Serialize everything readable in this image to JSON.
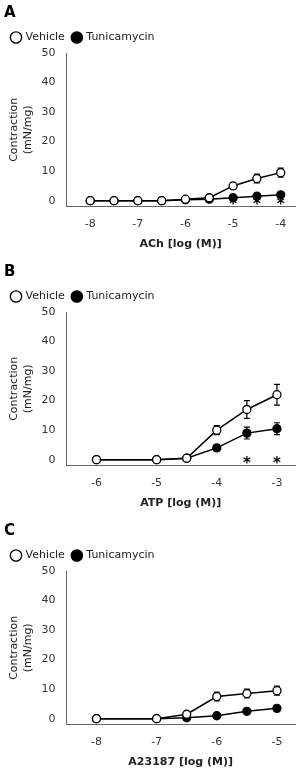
{
  "chart_data": [
    {
      "type": "line",
      "title": "A",
      "x_label": "ACh [log (M)]",
      "y_label": "Contraction\n(mN/mg)",
      "x": [
        -8,
        -7.5,
        -7,
        -6.5,
        -6,
        -5.5,
        -5,
        -4.5,
        -4
      ],
      "series": [
        {
          "name": "Vehicle",
          "color": "#000000",
          "marker": "circle_open",
          "values": [
            0,
            0,
            0,
            0,
            0.5,
            1.0,
            5.0,
            7.5,
            9.5
          ],
          "yerr": [
            0.2,
            0.2,
            0.2,
            0.2,
            0.3,
            0.5,
            1.0,
            1.5,
            1.5
          ]
        },
        {
          "name": "Tunicamycin",
          "color": "#000000",
          "marker": "circle",
          "values": [
            0,
            0,
            0,
            0,
            0.3,
            0.5,
            1.0,
            1.5,
            2.0
          ],
          "yerr": [
            0.2,
            0.2,
            0.2,
            0.2,
            0.2,
            0.3,
            0.4,
            0.5,
            0.5
          ]
        }
      ],
      "xlim": [
        -8.5,
        -3.7
      ],
      "ylim": [
        -2,
        50
      ],
      "xticks": [
        -8,
        -7,
        -6,
        -5,
        -4
      ],
      "yticks": [
        0,
        10,
        20,
        30,
        40,
        50
      ],
      "grid": false,
      "legend": "upper left",
      "annotations": [
        {
          "text": "*",
          "x": -5,
          "y": -1.5
        },
        {
          "text": "*",
          "x": -4.5,
          "y": -1.5
        },
        {
          "text": "*",
          "x": -4,
          "y": -1.5
        }
      ]
    },
    {
      "type": "line",
      "title": "B",
      "x_label": "ATP [log (M)]",
      "y_label": "Contraction\n(mN/mg)",
      "x": [
        -6,
        -5,
        -4.5,
        -4,
        -3.5,
        -3
      ],
      "series": [
        {
          "name": "Vehicle",
          "color": "#000000",
          "marker": "circle_open",
          "values": [
            0,
            0,
            0.5,
            10.0,
            17.0,
            22.0
          ],
          "yerr": [
            0.2,
            0.2,
            0.5,
            1.5,
            3.0,
            3.5
          ]
        },
        {
          "name": "Tunicamycin",
          "color": "#000000",
          "marker": "circle",
          "values": [
            0,
            0,
            0.5,
            4.0,
            9.0,
            10.5
          ],
          "yerr": [
            0.2,
            0.2,
            0.5,
            1.0,
            2.0,
            2.0
          ]
        }
      ],
      "xlim": [
        -6.5,
        -2.7
      ],
      "ylim": [
        -2,
        50
      ],
      "xticks": [
        -6,
        -5,
        -4,
        -3
      ],
      "yticks": [
        0,
        10,
        20,
        30,
        40,
        50
      ],
      "grid": false,
      "legend": "upper left",
      "annotations": [
        {
          "text": "*",
          "x": -3.5,
          "y": -1.5
        },
        {
          "text": "*",
          "x": -3,
          "y": -1.5
        }
      ]
    },
    {
      "type": "line",
      "title": "C",
      "x_label": "A23187 [log (M)]",
      "y_label": "Contraction\n(mN/mg)",
      "x": [
        -8,
        -7,
        -6.5,
        -6,
        -5.5,
        -5
      ],
      "series": [
        {
          "name": "Vehicle",
          "color": "#000000",
          "marker": "circle_open",
          "values": [
            0,
            0,
            1.5,
            7.5,
            8.5,
            9.5
          ],
          "yerr": [
            0.2,
            0.2,
            0.5,
            1.5,
            1.5,
            1.5
          ]
        },
        {
          "name": "Tunicamycin",
          "color": "#000000",
          "marker": "circle",
          "values": [
            0,
            0,
            0.3,
            1.0,
            2.5,
            3.5
          ],
          "yerr": [
            0.2,
            0.2,
            0.3,
            0.5,
            0.7,
            1.0
          ]
        }
      ],
      "xlim": [
        -8.5,
        -4.7
      ],
      "ylim": [
        -2,
        50
      ],
      "xticks": [
        -8,
        -7,
        -6,
        -5
      ],
      "yticks": [
        0,
        10,
        20,
        30,
        40,
        50
      ],
      "grid": false,
      "legend": "upper left"
    }
  ]
}
